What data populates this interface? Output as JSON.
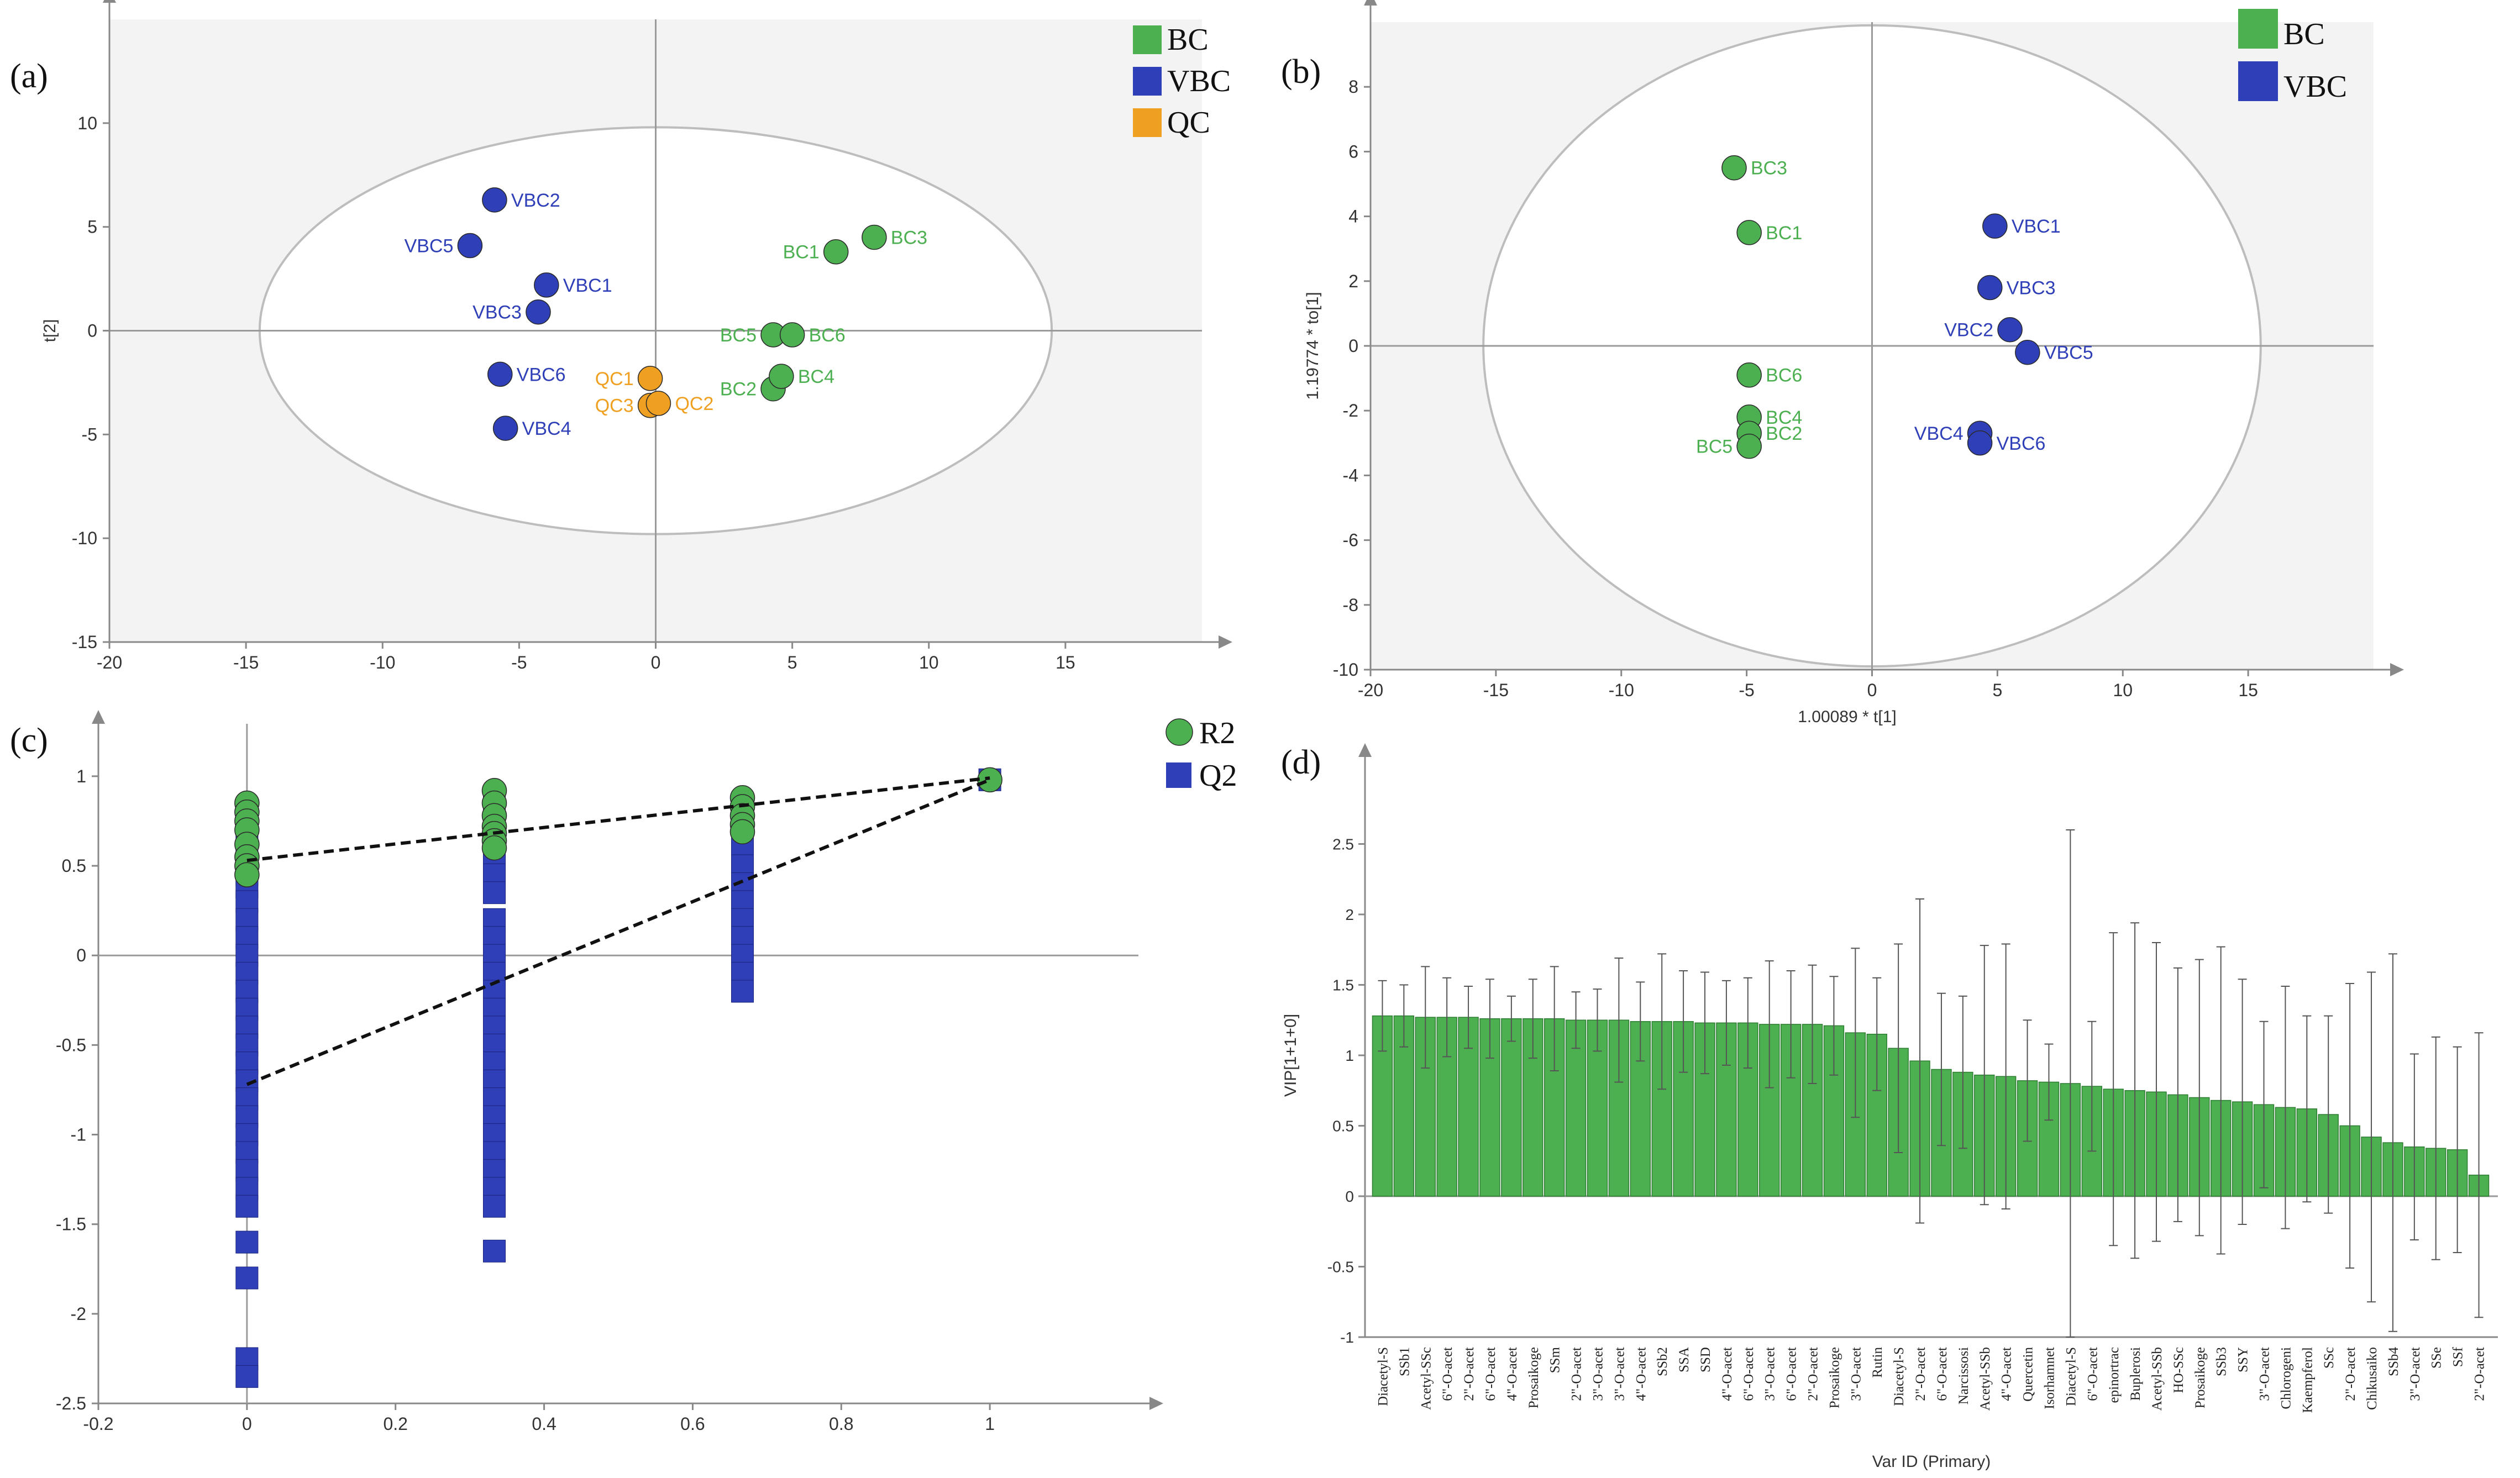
{
  "colors": {
    "BC": "#4caf50",
    "VBC": "#2f3fb8",
    "QC": "#f0a020",
    "plot_bg": "#f3f3f3",
    "axis": "#888888",
    "grid": "#9a9a9a",
    "bar": "#4caf50",
    "bar_dark": "#2e7d32"
  },
  "panels": {
    "a": "(a)",
    "b": "(b)",
    "c": "(c)",
    "d": "(d)"
  },
  "chart_data": [
    {
      "id": "a",
      "type": "scatter",
      "title": "",
      "xlabel": "",
      "ylabel": "t[2]",
      "xlim": [
        -20,
        20
      ],
      "ylim": [
        -15,
        15
      ],
      "xticks": [
        "-20",
        "-15",
        "-10",
        "-5",
        "0",
        "5",
        "10",
        "15"
      ],
      "yticks": [
        "-15",
        "-10",
        "-5",
        "0",
        "5",
        "10"
      ],
      "ellipse": {
        "cx": 0,
        "cy": 0,
        "rx": 14.5,
        "ry": 9.8
      },
      "legend": [
        {
          "name": "BC",
          "color": "#4caf50"
        },
        {
          "name": "VBC",
          "color": "#2f3fb8"
        },
        {
          "name": "QC",
          "color": "#f0a020"
        }
      ],
      "points": [
        {
          "label": "VBC2",
          "group": "VBC",
          "x": -5.9,
          "y": 6.3
        },
        {
          "label": "VBC5",
          "group": "VBC",
          "x": -6.8,
          "y": 4.1
        },
        {
          "label": "VBC1",
          "group": "VBC",
          "x": -4.0,
          "y": 2.2
        },
        {
          "label": "VBC3",
          "group": "VBC",
          "x": -4.3,
          "y": 0.9
        },
        {
          "label": "VBC6",
          "group": "VBC",
          "x": -5.7,
          "y": -2.1
        },
        {
          "label": "VBC4",
          "group": "VBC",
          "x": -5.5,
          "y": -4.7
        },
        {
          "label": "BC1",
          "group": "BC",
          "x": 6.6,
          "y": 3.8
        },
        {
          "label": "BC3",
          "group": "BC",
          "x": 8.0,
          "y": 4.5
        },
        {
          "label": "BC5",
          "group": "BC",
          "x": 4.3,
          "y": -0.2
        },
        {
          "label": "BC6",
          "group": "BC",
          "x": 5.0,
          "y": -0.2
        },
        {
          "label": "BC2",
          "group": "BC",
          "x": 4.3,
          "y": -2.8
        },
        {
          "label": "BC4",
          "group": "BC",
          "x": 4.6,
          "y": -2.2
        },
        {
          "label": "QC1",
          "group": "QC",
          "x": -0.2,
          "y": -2.3
        },
        {
          "label": "QC3",
          "group": "QC",
          "x": -0.2,
          "y": -3.6
        },
        {
          "label": "QC2",
          "group": "QC",
          "x": 0.1,
          "y": -3.5
        }
      ]
    },
    {
      "id": "b",
      "type": "scatter",
      "title": "",
      "xlabel": "1.00089 * t[1]",
      "ylabel": "1.19774 * to[1]",
      "xlim": [
        -20,
        20
      ],
      "ylim": [
        -10,
        10
      ],
      "xticks": [
        "-20",
        "-15",
        "-10",
        "-5",
        "0",
        "5",
        "10",
        "15"
      ],
      "yticks": [
        "-10",
        "-8",
        "-6",
        "-4",
        "-2",
        "0",
        "2",
        "4",
        "6",
        "8"
      ],
      "ellipse": {
        "cx": 0,
        "cy": 0,
        "rx": 15.5,
        "ry": 9.9
      },
      "legend": [
        {
          "name": "BC",
          "color": "#4caf50"
        },
        {
          "name": "VBC",
          "color": "#2f3fb8"
        }
      ],
      "points": [
        {
          "label": "BC3",
          "group": "BC",
          "x": -5.5,
          "y": 5.5
        },
        {
          "label": "BC1",
          "group": "BC",
          "x": -4.9,
          "y": 3.5
        },
        {
          "label": "BC6",
          "group": "BC",
          "x": -4.9,
          "y": -0.9
        },
        {
          "label": "BC4",
          "group": "BC",
          "x": -4.9,
          "y": -2.2
        },
        {
          "label": "BC2",
          "group": "BC",
          "x": -4.9,
          "y": -2.7
        },
        {
          "label": "BC5",
          "group": "BC",
          "x": -4.9,
          "y": -3.1
        },
        {
          "label": "VBC1",
          "group": "VBC",
          "x": 4.9,
          "y": 3.7
        },
        {
          "label": "VBC3",
          "group": "VBC",
          "x": 4.7,
          "y": 1.8
        },
        {
          "label": "VBC2",
          "group": "VBC",
          "x": 5.5,
          "y": 0.5
        },
        {
          "label": "VBC5",
          "group": "VBC",
          "x": 6.2,
          "y": -0.2
        },
        {
          "label": "VBC4",
          "group": "VBC",
          "x": 4.3,
          "y": -2.7
        },
        {
          "label": "VBC6",
          "group": "VBC",
          "x": 4.3,
          "y": -3.0
        }
      ]
    },
    {
      "id": "c",
      "type": "scatter",
      "title": "",
      "xlabel": "",
      "ylabel": "",
      "xlim": [
        -0.2,
        1.2
      ],
      "ylim": [
        -2.5,
        1.2
      ],
      "xticks": [
        "-0.2",
        "0",
        "0.2",
        "0.4",
        "0.6",
        "0.8",
        "1"
      ],
      "yticks": [
        "-2.5",
        "-2",
        "-1.5",
        "-1",
        "-0.5",
        "0",
        "0.5",
        "1"
      ],
      "legend": [
        {
          "name": "R2",
          "color": "#4caf50",
          "shape": "circle"
        },
        {
          "name": "Q2",
          "color": "#2f3fb8",
          "shape": "square"
        }
      ],
      "r2": [
        {
          "x": 0,
          "ys": [
            0.85,
            0.8,
            0.75,
            0.7,
            0.62,
            0.55,
            0.5,
            0.45
          ]
        },
        {
          "x": 0.333,
          "ys": [
            0.92,
            0.85,
            0.78,
            0.72,
            0.68,
            0.64,
            0.6
          ]
        },
        {
          "x": 0.667,
          "ys": [
            0.88,
            0.83,
            0.78,
            0.73,
            0.69
          ]
        },
        {
          "x": 1,
          "ys": [
            0.98
          ]
        }
      ],
      "q2": [
        {
          "x": 0,
          "ys": [
            0.65,
            0.55,
            0.45,
            0.38,
            0.3,
            0.2,
            0.1,
            0,
            -0.1,
            -0.2,
            -0.3,
            -0.4,
            -0.5,
            -0.6,
            -0.7,
            -0.8,
            -0.9,
            -1.0,
            -1.1,
            -1.2,
            -1.3,
            -1.4,
            -1.6,
            -1.8,
            -2.25,
            -2.35
          ]
        },
        {
          "x": 0.333,
          "ys": [
            0.85,
            0.75,
            0.65,
            0.55,
            0.45,
            0.35,
            0.2,
            0.1,
            0,
            -0.1,
            -0.2,
            -0.3,
            -0.4,
            -0.5,
            -0.6,
            -0.7,
            -0.8,
            -0.9,
            -1.0,
            -1.1,
            -1.2,
            -1.3,
            -1.4,
            -1.65
          ]
        },
        {
          "x": 0.667,
          "ys": [
            0.6,
            0.5,
            0.4,
            0.3,
            0.2,
            0.1,
            0,
            -0.1,
            -0.2
          ]
        },
        {
          "x": 1,
          "ys": [
            0.98
          ]
        }
      ],
      "r2_line": [
        [
          0,
          0.53
        ],
        [
          1,
          0.99
        ]
      ],
      "q2_line": [
        [
          0,
          -0.72
        ],
        [
          1,
          0.98
        ]
      ]
    },
    {
      "id": "d",
      "type": "bar",
      "title": "",
      "xlabel": "Var ID (Primary)",
      "ylabel": "VIP[1+1+0]",
      "ylim": [
        -1,
        3
      ],
      "yticks": [
        "-1",
        "-0.5",
        "0",
        "0.5",
        "1",
        "1.5",
        "2",
        "2.5"
      ],
      "categories": [
        "Diacetyl-S",
        "SSb1",
        "Acetyl-SSc",
        "6\"-O-acet",
        "2\"-O-acet",
        "6\"-O-acet",
        "4\"-O-acet",
        "Prosaikoge",
        "SSm",
        "2\"-O-acet",
        "3\"-O-acet",
        "3\"-O-acet",
        "4\"-O-acet",
        "SSb2",
        "SSA",
        "SSD",
        "4\"-O-acet",
        "6\"-O-acet",
        "3\"-O-acet",
        "6\"-O-acet",
        "2\"-O-acet",
        "Prosaikoge",
        "3\"-O-acet",
        "Rutin",
        "Diacetyl-S",
        "2\"-O-acet",
        "6\"-O-acet",
        "Narcissosi",
        "Acetyl-SSb",
        "4\"-O-acet",
        "Quercetin",
        "Isorhamnet",
        "Diacetyl-S",
        "6\"-O-acet",
        "epinortrac",
        "Buplerosi",
        "Acetyl-SSb",
        "HO-SSc",
        "Prosaikoge",
        "SSb3",
        "SSY",
        "3\"-O-acet",
        "Chlorogeni",
        "Kaempferol",
        "SSc",
        "2\"-O-acet",
        "Chikusaiko",
        "SSb4",
        "3\"-O-acet",
        "SSe",
        "SSf",
        "2\"-O-acet"
      ],
      "values": [
        1.28,
        1.28,
        1.27,
        1.27,
        1.27,
        1.26,
        1.26,
        1.26,
        1.26,
        1.25,
        1.25,
        1.25,
        1.24,
        1.24,
        1.24,
        1.23,
        1.23,
        1.23,
        1.22,
        1.22,
        1.22,
        1.21,
        1.16,
        1.15,
        1.05,
        0.96,
        0.9,
        0.88,
        0.86,
        0.85,
        0.82,
        0.81,
        0.8,
        0.78,
        0.76,
        0.75,
        0.74,
        0.72,
        0.7,
        0.68,
        0.67,
        0.65,
        0.63,
        0.62,
        0.58,
        0.5,
        0.42,
        0.38,
        0.35,
        0.34,
        0.33,
        0.15
      ],
      "errors": [
        0.25,
        0.22,
        0.36,
        0.28,
        0.22,
        0.28,
        0.16,
        0.28,
        0.37,
        0.2,
        0.22,
        0.44,
        0.28,
        0.48,
        0.36,
        0.36,
        0.3,
        0.32,
        0.45,
        0.38,
        0.42,
        0.35,
        0.6,
        0.4,
        0.74,
        1.15,
        0.54,
        0.54,
        0.92,
        0.94,
        0.43,
        0.27,
        1.8,
        0.46,
        1.11,
        1.19,
        1.06,
        0.9,
        0.98,
        1.09,
        0.87,
        0.59,
        0.86,
        0.66,
        0.7,
        1.01,
        1.17,
        1.34,
        0.66,
        0.79,
        0.73,
        1.01
      ]
    }
  ]
}
